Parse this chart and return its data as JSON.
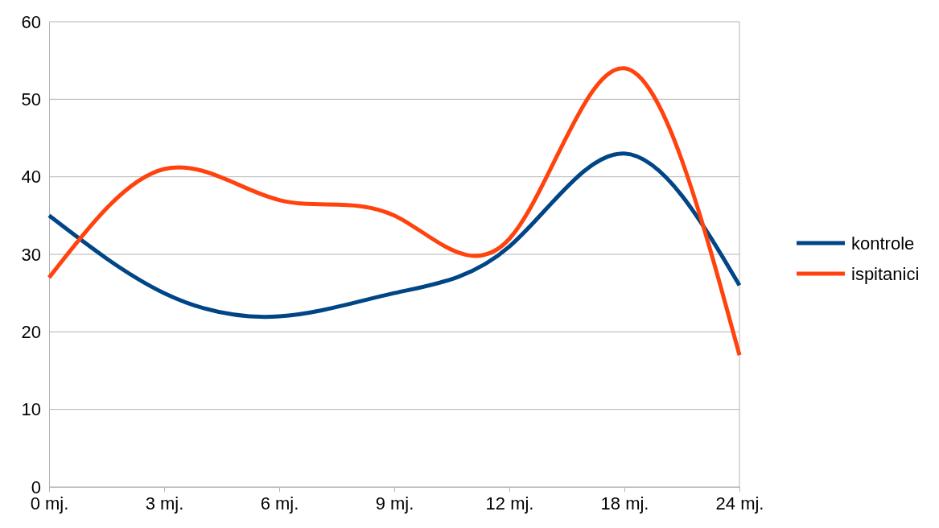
{
  "chart_data": {
    "type": "line",
    "categories": [
      "0 mj.",
      "3 mj.",
      "6 mj.",
      "9 mj.",
      "12 mj.",
      "18 mj.",
      "24 mj."
    ],
    "series": [
      {
        "name": "kontrole",
        "color": "#004586",
        "values": [
          35,
          25,
          22,
          25,
          31,
          43,
          26
        ]
      },
      {
        "name": "ispitanici",
        "color": "#ff420e",
        "values": [
          27,
          41,
          37,
          35,
          32,
          54,
          17
        ]
      }
    ],
    "ylim": [
      0,
      60
    ],
    "yticks": [
      0,
      10,
      20,
      30,
      40,
      50,
      60
    ],
    "grid": "y",
    "legend": "right",
    "marker": "none",
    "line_style": "solid"
  }
}
